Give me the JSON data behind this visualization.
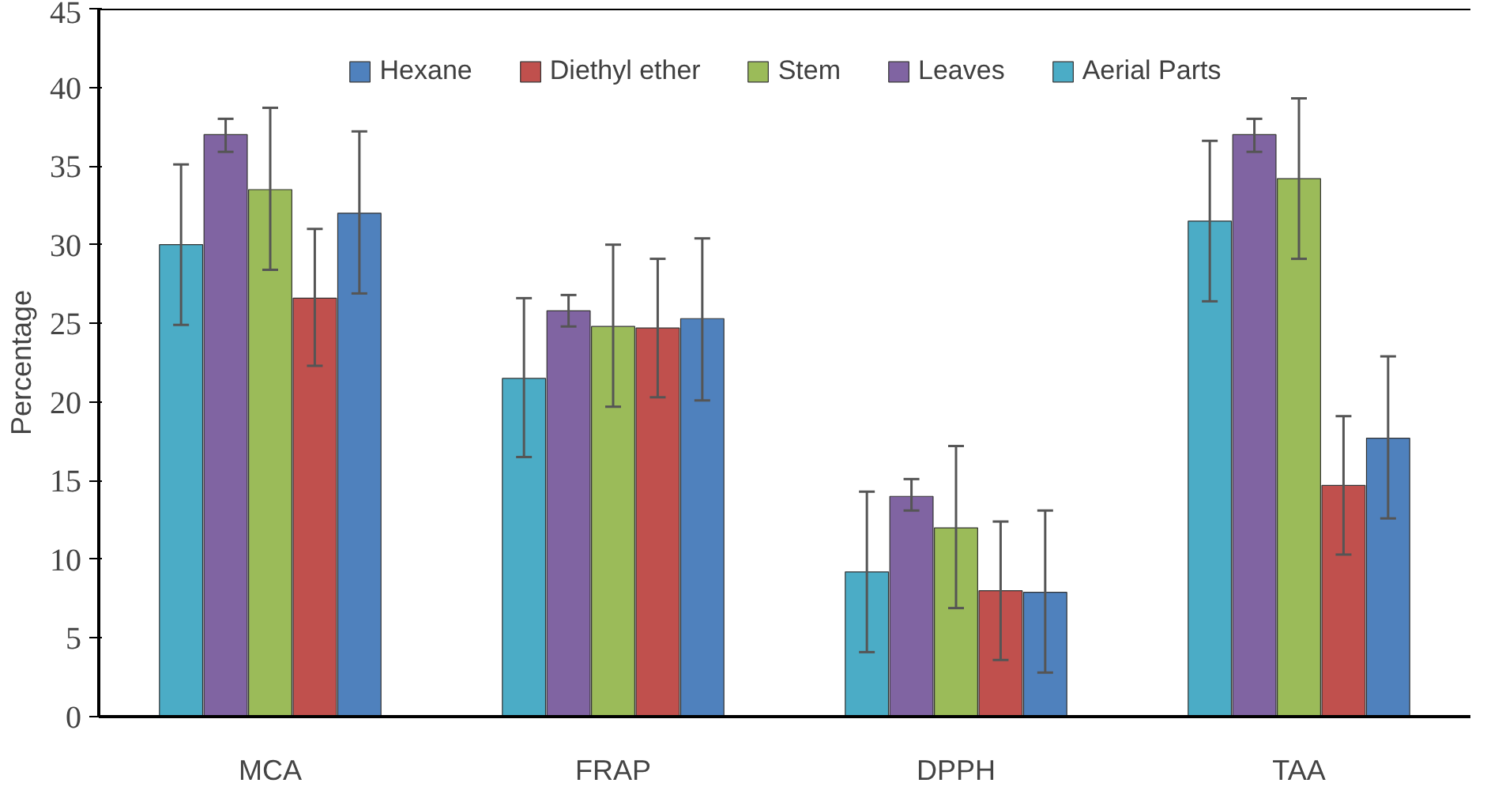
{
  "chart_data": {
    "type": "bar",
    "ylabel": "Percentage",
    "categories": [
      "MCA",
      "FRAP",
      "DPPH",
      "TAA"
    ],
    "series": [
      {
        "name": "Aerial Parts",
        "color": "#4bacc6",
        "values": [
          30,
          21.5,
          9.2,
          31.5
        ],
        "errors": [
          [
            24.9,
            35.1
          ],
          [
            16.5,
            26.6
          ],
          [
            4.1,
            14.3
          ],
          [
            26.4,
            36.6
          ]
        ]
      },
      {
        "name": "Leaves",
        "color": "#8064a2",
        "values": [
          37,
          25.8,
          14.0,
          37
        ],
        "errors": [
          [
            35.9,
            38
          ],
          [
            24.8,
            26.8
          ],
          [
            13.1,
            15.1
          ],
          [
            35.9,
            38
          ]
        ]
      },
      {
        "name": "Stem",
        "color": "#9bbb59",
        "values": [
          33.5,
          24.8,
          12.0,
          34.2
        ],
        "errors": [
          [
            28.4,
            38.7
          ],
          [
            19.7,
            30
          ],
          [
            6.9,
            17.2
          ],
          [
            29.1,
            39.3
          ]
        ]
      },
      {
        "name": "Diethyl ether",
        "color": "#c0504d",
        "values": [
          26.6,
          24.7,
          8.0,
          14.7
        ],
        "errors": [
          [
            22.3,
            31
          ],
          [
            20.3,
            29.1
          ],
          [
            3.6,
            12.4
          ],
          [
            10.3,
            19.1
          ]
        ]
      },
      {
        "name": "Hexane",
        "color": "#4f81bd",
        "values": [
          32,
          25.3,
          7.9,
          17.7
        ],
        "errors": [
          [
            26.9,
            37.2
          ],
          [
            20.1,
            30.4
          ],
          [
            2.8,
            13.1
          ],
          [
            12.6,
            22.9
          ]
        ]
      }
    ],
    "ylim": [
      0,
      45
    ],
    "yticks": [
      0,
      5,
      10,
      15,
      20,
      25,
      30,
      35,
      40,
      45
    ],
    "grid": false,
    "legend": "top"
  }
}
